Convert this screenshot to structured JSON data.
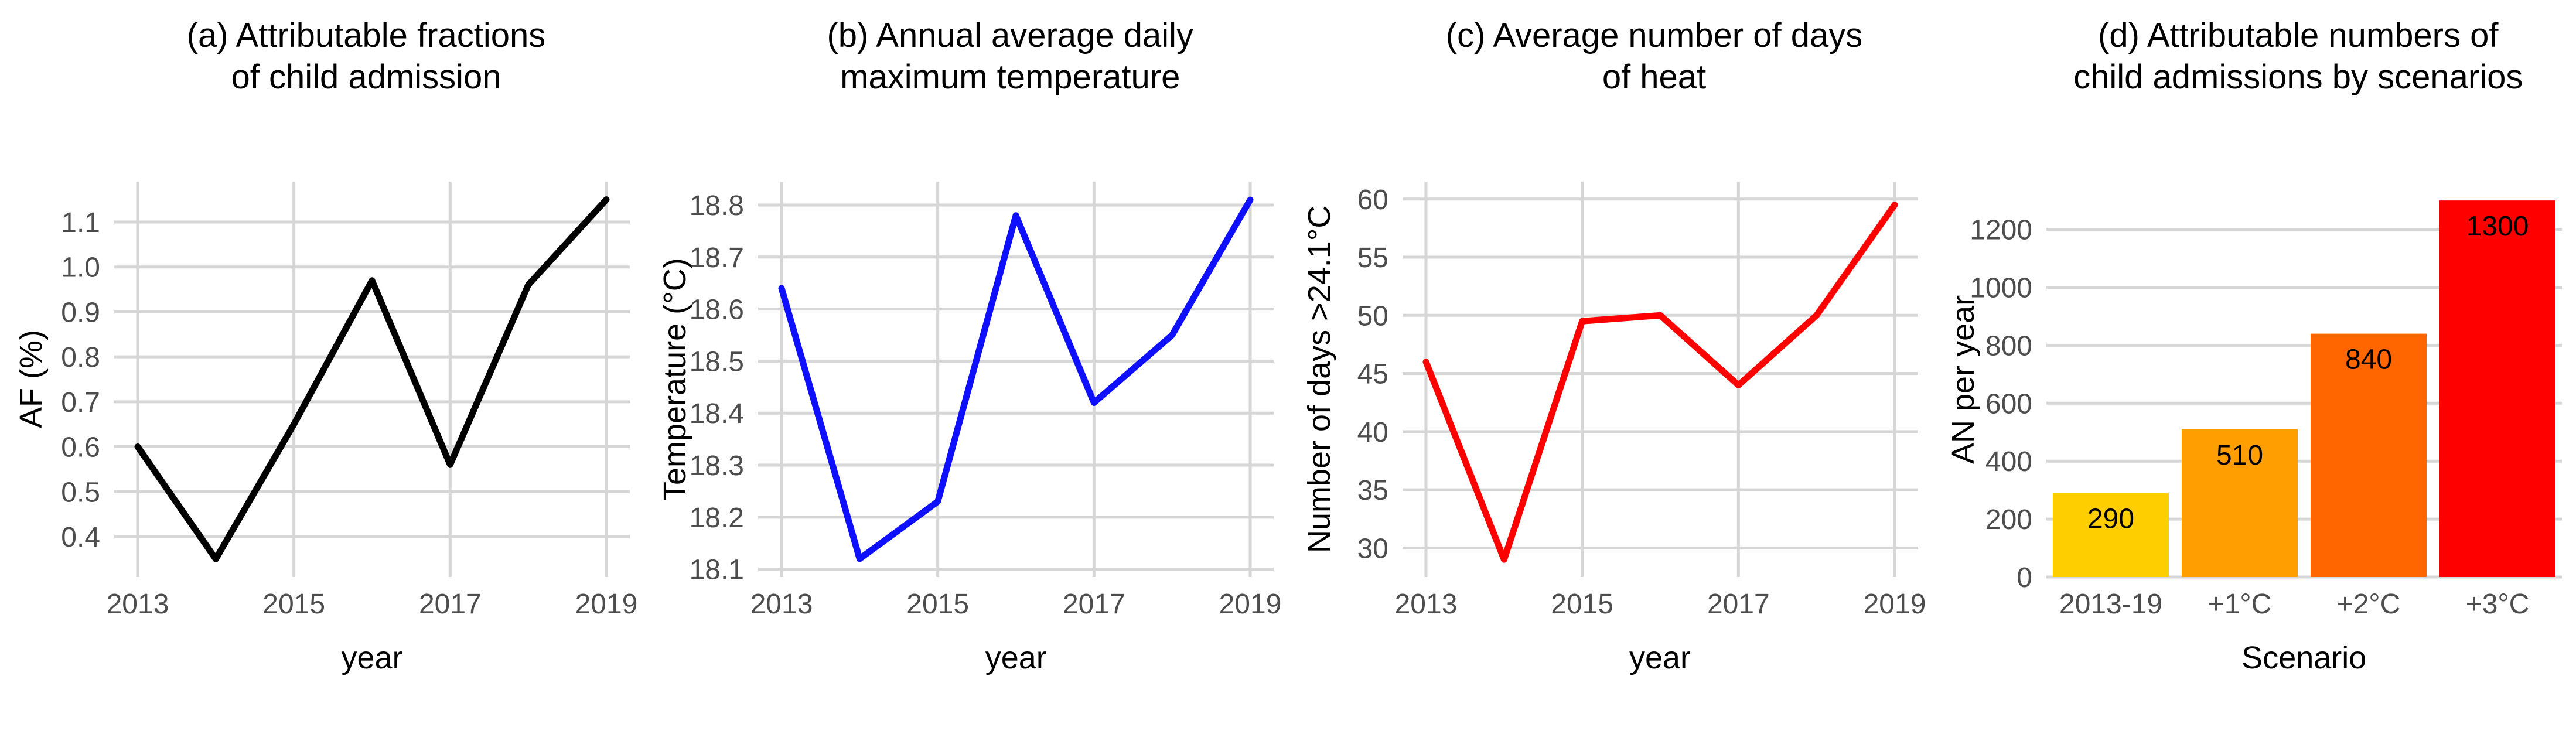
{
  "style": {
    "background": "#ffffff",
    "grid_color": "#d6d6d6",
    "tick_label_color": "#4d4d4d",
    "text_color": "#000000"
  },
  "chart_data": [
    {
      "type": "line",
      "panel_label": "a",
      "title_lines": [
        "(a) Attributable fractions",
        "of child admission"
      ],
      "xlabel": "year",
      "ylabel": "AF (%)",
      "color": "#000000",
      "x": [
        2013,
        2014,
        2015,
        2016,
        2017,
        2018,
        2019
      ],
      "values": [
        0.6,
        0.35,
        0.65,
        0.97,
        0.56,
        0.96,
        1.15
      ],
      "xlim": [
        2012.7,
        2019.3
      ],
      "ylim": [
        0.31,
        1.19
      ],
      "xticks": [
        2013,
        2015,
        2017,
        2019
      ],
      "xtick_labels": [
        "2013",
        "2015",
        "2017",
        "2019"
      ],
      "yticks": [
        0.4,
        0.5,
        0.6,
        0.7,
        0.8,
        0.9,
        1.0,
        1.1
      ],
      "ytick_labels": [
        "0.4",
        "0.5",
        "0.6",
        "0.7",
        "0.8",
        "0.9",
        "1.0",
        "1.1"
      ],
      "grid": true,
      "legend": "none"
    },
    {
      "type": "line",
      "panel_label": "b",
      "title_lines": [
        "(b) Annual average daily",
        "maximum temperature"
      ],
      "xlabel": "year",
      "ylabel": "Temperature (°C)",
      "color": "#0f0fff",
      "x": [
        2013,
        2014,
        2015,
        2016,
        2017,
        2018,
        2019
      ],
      "values": [
        18.64,
        18.12,
        18.23,
        18.78,
        18.42,
        18.55,
        18.81
      ],
      "xlim": [
        2012.7,
        2019.3
      ],
      "ylim": [
        18.085,
        18.845
      ],
      "xticks": [
        2013,
        2015,
        2017,
        2019
      ],
      "xtick_labels": [
        "2013",
        "2015",
        "2017",
        "2019"
      ],
      "yticks": [
        18.1,
        18.2,
        18.3,
        18.4,
        18.5,
        18.6,
        18.7,
        18.8
      ],
      "ytick_labels": [
        "18.1",
        "18.2",
        "18.3",
        "18.4",
        "18.5",
        "18.6",
        "18.7",
        "18.8"
      ],
      "grid": true,
      "legend": "none"
    },
    {
      "type": "line",
      "panel_label": "c",
      "title_lines": [
        "(c) Average number of days",
        "of heat"
      ],
      "xlabel": "year",
      "ylabel": "Number of days >24.1°C",
      "color": "#fe0000",
      "x": [
        2013,
        2014,
        2015,
        2016,
        2017,
        2018,
        2019
      ],
      "values": [
        46,
        29,
        49.5,
        50,
        44,
        50,
        59.5
      ],
      "xlim": [
        2012.7,
        2019.3
      ],
      "ylim": [
        27.5,
        61.5
      ],
      "xticks": [
        2013,
        2015,
        2017,
        2019
      ],
      "xtick_labels": [
        "2013",
        "2015",
        "2017",
        "2019"
      ],
      "yticks": [
        30,
        35,
        40,
        45,
        50,
        55,
        60
      ],
      "ytick_labels": [
        "30",
        "35",
        "40",
        "45",
        "50",
        "55",
        "60"
      ],
      "grid": true,
      "legend": "none"
    },
    {
      "type": "bar",
      "panel_label": "d",
      "title_lines": [
        "(d) Attributable numbers of",
        "child admissions by scenarios"
      ],
      "xlabel": "Scenario",
      "ylabel": "AN per year",
      "categories": [
        "2013-19",
        "+1°C",
        "+2°C",
        "+3°C"
      ],
      "values": [
        290,
        510,
        840,
        1300
      ],
      "bar_labels": [
        "290",
        "510",
        "840",
        "1300"
      ],
      "bar_colors": [
        "#ffce00",
        "#ff9e00",
        "#ff6600",
        "#ff0000"
      ],
      "ylim": [
        0,
        1365
      ],
      "yticks": [
        0,
        200,
        400,
        600,
        800,
        1000,
        1200
      ],
      "ytick_labels": [
        "0",
        "200",
        "400",
        "600",
        "800",
        "1000",
        "1200"
      ],
      "grid": true,
      "legend": "none"
    }
  ]
}
